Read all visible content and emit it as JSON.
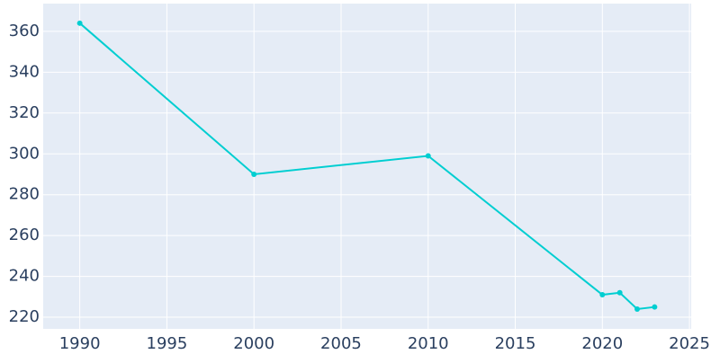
{
  "chart_data": {
    "type": "line",
    "x": [
      1990,
      2000,
      2010,
      2020,
      2021,
      2022,
      2023
    ],
    "series": [
      {
        "color": "#00ced1",
        "values": [
          364,
          290,
          299,
          231,
          232,
          224,
          225
        ]
      }
    ],
    "xlim": [
      1987.9,
      2025.1
    ],
    "xticks": [
      1990,
      1995,
      2000,
      2005,
      2010,
      2015,
      2020,
      2025
    ],
    "ylim": [
      214.3,
      373.6
    ],
    "yticks": [
      220,
      240,
      260,
      280,
      300,
      320,
      340,
      360
    ],
    "grid": true
  }
}
